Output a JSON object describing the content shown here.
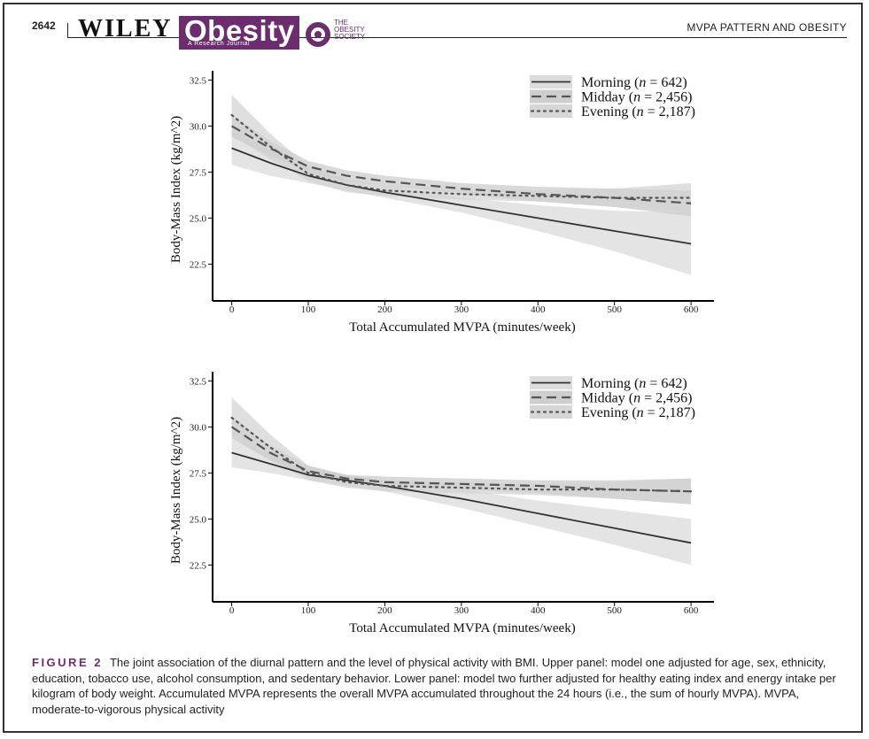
{
  "header": {
    "page_number": "2642",
    "publisher": "WILEY",
    "journal": "Obesity",
    "journal_subtitle": "A Research Journal",
    "society": [
      "THE",
      "OBESITY",
      "SOCIETY"
    ],
    "running_head": "MVPA PATTERN AND OBESITY"
  },
  "chart_data": [
    {
      "type": "line",
      "panel": "upper",
      "xlabel": "Total Accumulated MVPA  (minutes/week)",
      "ylabel": "Body-Mass Index (kg/m^2)",
      "xlim": [
        -25,
        630
      ],
      "ylim": [
        20.5,
        33
      ],
      "x_ticks": [
        0,
        100,
        200,
        300,
        400,
        500,
        600
      ],
      "y_ticks": [
        22.5,
        25.0,
        27.5,
        30.0,
        32.5
      ],
      "legend_position": "top-right",
      "series": [
        {
          "name": "Morning (n = 642)",
          "name_parts": [
            "Morning (",
            "n",
            " = 642)"
          ],
          "style": "solid",
          "color": "#333333",
          "x": [
            0,
            50,
            100,
            150,
            200,
            300,
            400,
            500,
            600
          ],
          "y": [
            28.8,
            28.0,
            27.3,
            26.8,
            26.4,
            25.7,
            25.0,
            24.3,
            23.6
          ],
          "ci_lower": [
            27.9,
            27.3,
            26.9,
            26.5,
            26.1,
            25.3,
            24.3,
            23.2,
            21.9
          ],
          "ci_upper": [
            29.7,
            28.7,
            27.7,
            27.1,
            26.8,
            26.1,
            25.7,
            25.4,
            25.3
          ]
        },
        {
          "name": "Midday (n = 2,456)",
          "name_parts": [
            "Midday  (",
            "n",
            " = 2,456)"
          ],
          "style": "dashed",
          "color": "#555555",
          "x": [
            0,
            50,
            100,
            150,
            200,
            300,
            400,
            500,
            600
          ],
          "y": [
            30.0,
            28.8,
            27.8,
            27.3,
            27.0,
            26.6,
            26.3,
            26.1,
            25.8
          ],
          "ci_lower": [
            29.4,
            28.4,
            27.5,
            27.0,
            26.8,
            26.3,
            25.9,
            25.6,
            25.1
          ],
          "ci_upper": [
            30.6,
            29.2,
            28.1,
            27.6,
            27.3,
            26.9,
            26.7,
            26.6,
            26.5
          ]
        },
        {
          "name": "Evening (n = 2,187)",
          "name_parts": [
            "Evening (",
            "n",
            " = 2,187)"
          ],
          "style": "dotted",
          "color": "#555555",
          "x": [
            0,
            50,
            100,
            150,
            200,
            300,
            400,
            500,
            600
          ],
          "y": [
            30.6,
            28.9,
            27.4,
            26.8,
            26.5,
            26.3,
            26.2,
            26.1,
            26.1
          ],
          "ci_lower": [
            29.5,
            28.2,
            27.0,
            26.4,
            26.2,
            26.0,
            25.9,
            25.6,
            25.3
          ],
          "ci_upper": [
            31.7,
            29.6,
            27.8,
            27.1,
            26.8,
            26.6,
            26.5,
            26.6,
            26.9
          ]
        }
      ]
    },
    {
      "type": "line",
      "panel": "lower",
      "xlabel": "Total Accumulated MVPA  (minutes/week)",
      "ylabel": "Body-Mass Index (kg/m^2)",
      "xlim": [
        -25,
        630
      ],
      "ylim": [
        20.5,
        33
      ],
      "x_ticks": [
        0,
        100,
        200,
        300,
        400,
        500,
        600
      ],
      "y_ticks": [
        22.5,
        25.0,
        27.5,
        30.0,
        32.5
      ],
      "legend_position": "top-right",
      "series": [
        {
          "name": "Morning (n = 642)",
          "name_parts": [
            "Morning (",
            "n",
            " = 642)"
          ],
          "style": "solid",
          "color": "#333333",
          "x": [
            0,
            50,
            100,
            150,
            200,
            300,
            400,
            500,
            600
          ],
          "y": [
            28.6,
            28.0,
            27.4,
            27.1,
            26.8,
            26.1,
            25.3,
            24.5,
            23.7
          ],
          "ci_lower": [
            27.8,
            27.5,
            27.1,
            26.8,
            26.5,
            25.6,
            24.6,
            23.6,
            22.5
          ],
          "ci_upper": [
            29.4,
            28.5,
            27.8,
            27.4,
            27.1,
            26.6,
            26.0,
            25.5,
            25.0
          ]
        },
        {
          "name": "Midday (n = 2,456)",
          "name_parts": [
            "Midday  (",
            "n",
            " = 2,456)"
          ],
          "style": "dashed",
          "color": "#555555",
          "x": [
            0,
            50,
            100,
            150,
            200,
            300,
            400,
            500,
            600
          ],
          "y": [
            30.0,
            28.6,
            27.6,
            27.2,
            27.0,
            26.9,
            26.8,
            26.6,
            26.5
          ],
          "ci_lower": [
            29.4,
            28.2,
            27.3,
            27.0,
            26.8,
            26.6,
            26.4,
            26.1,
            25.8
          ],
          "ci_upper": [
            30.6,
            29.0,
            27.9,
            27.4,
            27.3,
            27.2,
            27.1,
            27.1,
            27.2
          ]
        },
        {
          "name": "Evening (n = 2,187)",
          "name_parts": [
            "Evening (",
            "n",
            " = 2,187)"
          ],
          "style": "dotted",
          "color": "#555555",
          "x": [
            0,
            50,
            100,
            150,
            200,
            300,
            400,
            500,
            600
          ],
          "y": [
            30.5,
            28.9,
            27.5,
            27.0,
            26.8,
            26.7,
            26.6,
            26.6,
            26.5
          ],
          "ci_lower": [
            29.4,
            28.2,
            27.1,
            26.7,
            26.5,
            26.4,
            26.3,
            26.1,
            25.8
          ],
          "ci_upper": [
            31.6,
            29.6,
            27.9,
            27.3,
            27.1,
            27.0,
            26.9,
            27.0,
            27.2
          ]
        }
      ]
    }
  ],
  "caption": {
    "label": "FIGURE 2",
    "text": "The joint association of the diurnal pattern and the level of physical activity with BMI. Upper panel: model one adjusted for age, sex, ethnicity, education, tobacco use, alcohol consumption, and sedentary behavior. Lower panel: model two further adjusted for healthy eating index and energy intake per kilogram of body weight. Accumulated MVPA represents the overall MVPA accumulated throughout the 24 hours (i.e., the sum of hourly MVPA). MVPA, moderate-to-vigorous physical activity"
  }
}
